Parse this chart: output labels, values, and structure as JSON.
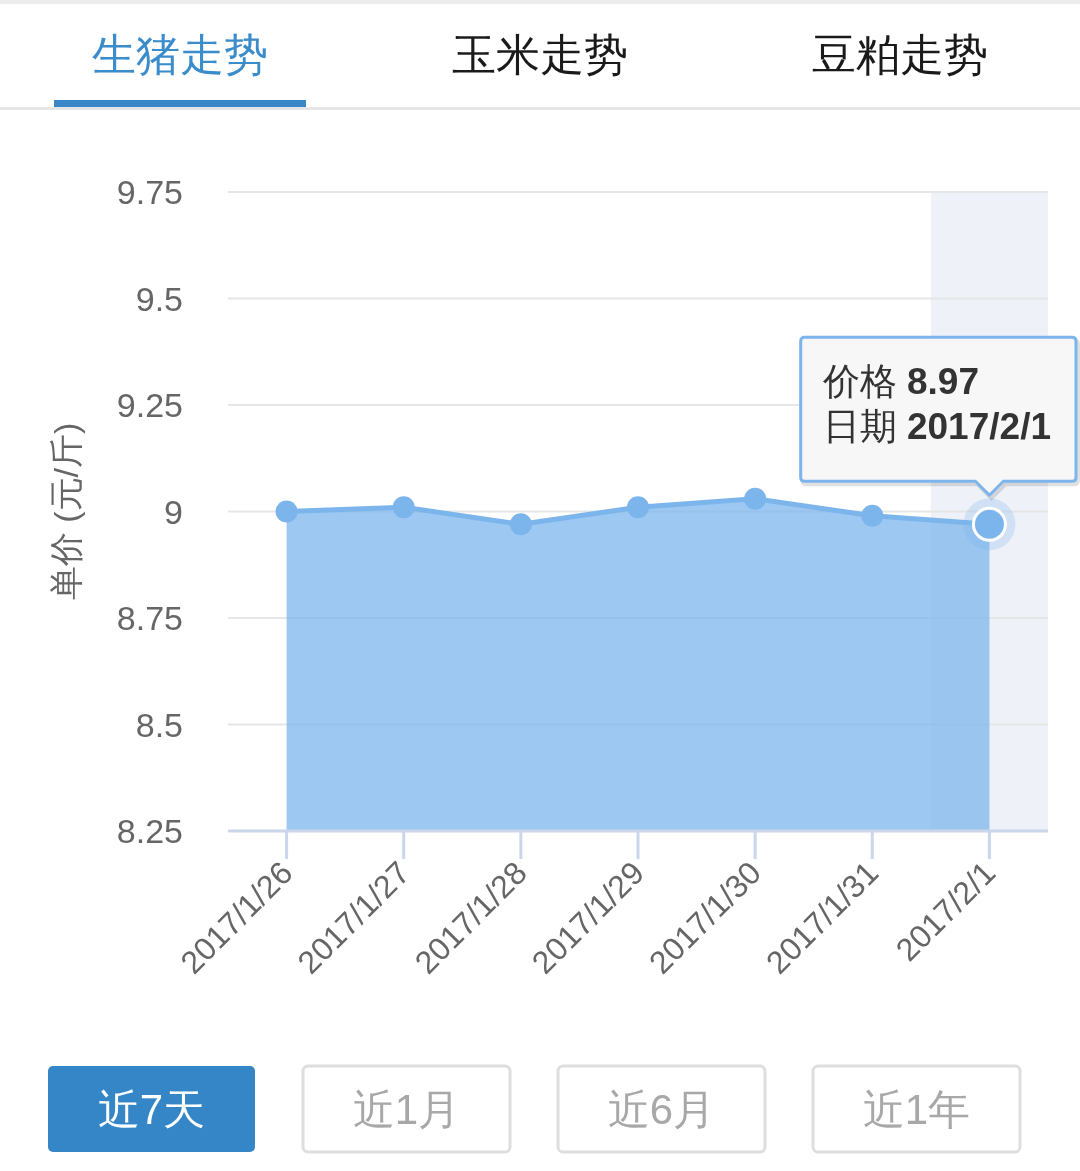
{
  "chart_data": {
    "type": "area",
    "title": "生猪走势",
    "ylabel": "单价 (元/斤)",
    "categories": [
      "2017/1/26",
      "2017/1/27",
      "2017/1/28",
      "2017/1/29",
      "2017/1/30",
      "2017/1/31",
      "2017/2/1"
    ],
    "series": [
      {
        "color": "#7cb5ec",
        "values": [
          9.0,
          9.01,
          8.97,
          9.01,
          9.03,
          8.99,
          8.97
        ]
      }
    ],
    "ylim": [
      8.25,
      9.75
    ],
    "yticks": [
      8.25,
      8.5,
      8.75,
      9,
      9.25,
      9.5,
      9.75
    ],
    "grid": "y",
    "marker": "circle",
    "line_style": "solid",
    "bands": [
      {
        "axis": "x",
        "from": "2017/2/1",
        "to": "2017/2/1",
        "color": "#eef1f8"
      }
    ],
    "annotations": [
      "玉米走势",
      "豆粕走势",
      "近7天",
      "近1月",
      "近6月",
      "近1年",
      {
        "text": "价格 8.97\n日期 2017/2/1",
        "x": "2017/2/1",
        "y": 8.97
      }
    ]
  }
}
